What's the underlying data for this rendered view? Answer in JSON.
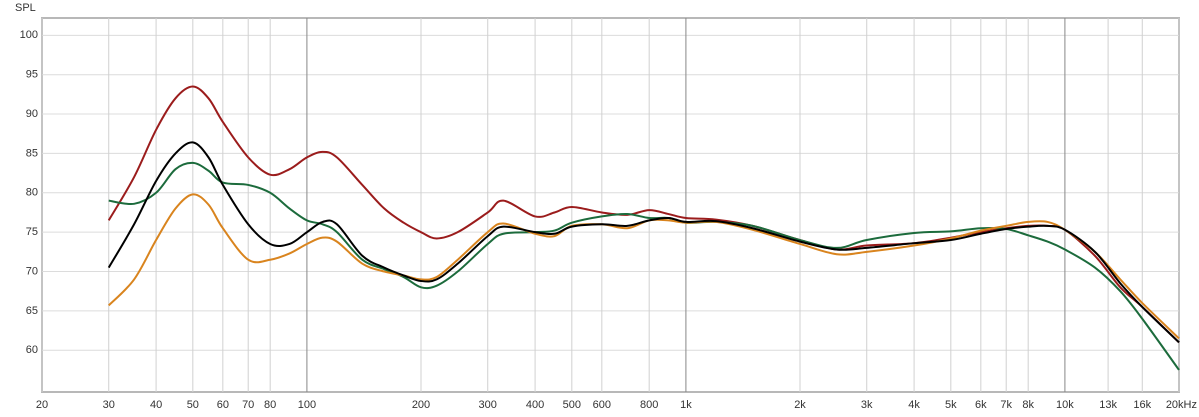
{
  "chart_data": {
    "type": "line",
    "y_label": "SPL",
    "xscale": "log",
    "grid": true,
    "xlim": [
      20,
      20000
    ],
    "ylim": [
      54.7,
      102.2
    ],
    "xticks": [
      20,
      30,
      40,
      50,
      60,
      70,
      80,
      100,
      200,
      300,
      400,
      500,
      600,
      800,
      {
        "value": 1000,
        "label": "1k"
      },
      {
        "value": 2000,
        "label": "2k"
      },
      {
        "value": 3000,
        "label": "3k"
      },
      {
        "value": 4000,
        "label": "4k"
      },
      {
        "value": 5000,
        "label": "5k"
      },
      {
        "value": 6000,
        "label": "6k"
      },
      {
        "value": 7000,
        "label": "7k"
      },
      {
        "value": 8000,
        "label": "8k"
      },
      {
        "value": 10000,
        "label": "10k"
      },
      {
        "value": 13000,
        "label": "13k"
      },
      {
        "value": 16000,
        "label": "16k"
      },
      {
        "value": 20000,
        "label": "20kHz"
      }
    ],
    "yticks": [
      60,
      65,
      70,
      75,
      80,
      85,
      90,
      95,
      100
    ],
    "x": [
      30,
      35,
      40,
      45,
      50,
      55,
      60,
      70,
      80,
      90,
      100,
      110,
      120,
      140,
      160,
      180,
      200,
      220,
      250,
      300,
      330,
      400,
      450,
      500,
      600,
      700,
      800,
      900,
      1000,
      1200,
      1500,
      2000,
      2500,
      3000,
      4000,
      5000,
      6000,
      7000,
      8000,
      9000,
      10000,
      12000,
      14000,
      16000,
      20000
    ],
    "series": [
      {
        "color": "#9b1c1c",
        "values": [
          76.5,
          82,
          88,
          92,
          93.5,
          92,
          89,
          84.5,
          82.3,
          83,
          84.5,
          85.2,
          84.5,
          81,
          78,
          76.2,
          75,
          74.2,
          75,
          77.5,
          79,
          77,
          77.5,
          78.2,
          77.5,
          77.2,
          77.8,
          77.3,
          76.8,
          76.6,
          75.8,
          74,
          72.8,
          73.3,
          73.6,
          74.3,
          75,
          75.5,
          75.8,
          75.8,
          75.3,
          72,
          68,
          65.5,
          61
        ]
      },
      {
        "color": "#1c6b3c",
        "values": [
          79,
          78.6,
          80,
          83,
          83.8,
          82.8,
          81.3,
          81,
          80,
          78,
          76.5,
          76,
          75,
          71.5,
          70.3,
          69.3,
          68,
          68.2,
          70,
          73.5,
          74.8,
          75,
          75.2,
          76.2,
          77,
          77.3,
          76.8,
          76.8,
          76.2,
          76.3,
          75.8,
          74,
          73,
          74,
          74.9,
          75.1,
          75.5,
          75.4,
          74.6,
          73.8,
          72.8,
          70.5,
          67.5,
          64,
          57.5
        ]
      },
      {
        "color": "#d9841e",
        "values": [
          65.7,
          69,
          74,
          78,
          79.8,
          78.5,
          75.5,
          71.5,
          71.5,
          72.3,
          73.5,
          74.3,
          73.8,
          71,
          70,
          69.5,
          69,
          69.3,
          71.5,
          75,
          76.1,
          74.8,
          74.5,
          75.8,
          76,
          75.5,
          76.5,
          76.5,
          76.2,
          76.3,
          75.3,
          73.5,
          72.2,
          72.5,
          73.3,
          74.2,
          75.2,
          75.8,
          76.3,
          76.3,
          75.3,
          72.5,
          69,
          66,
          61.5
        ]
      },
      {
        "color": "#000000",
        "values": [
          70.5,
          76,
          81.5,
          85,
          86.4,
          84.5,
          81,
          76,
          73.5,
          73.5,
          75,
          76.3,
          76,
          72,
          70.5,
          69.5,
          68.8,
          69,
          71,
          74.5,
          75.7,
          75,
          74.8,
          75.7,
          76,
          75.8,
          76.5,
          76.8,
          76.3,
          76.4,
          75.5,
          73.8,
          72.8,
          73,
          73.6,
          74,
          74.8,
          75.4,
          75.7,
          75.8,
          75.3,
          72.5,
          68.5,
          65.5,
          61
        ]
      }
    ]
  }
}
